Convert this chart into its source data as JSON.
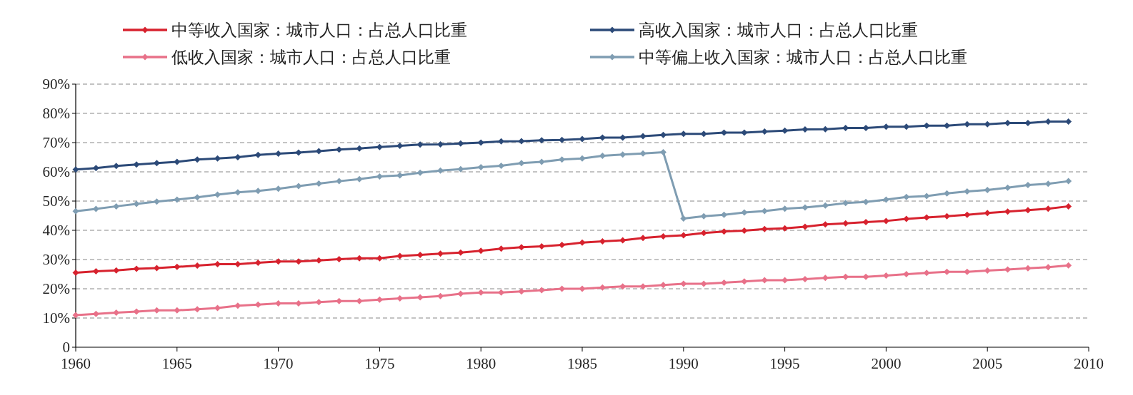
{
  "chart_data": {
    "type": "line",
    "x": [
      1960,
      1961,
      1962,
      1963,
      1964,
      1965,
      1966,
      1967,
      1968,
      1969,
      1970,
      1971,
      1972,
      1973,
      1974,
      1975,
      1976,
      1977,
      1978,
      1979,
      1980,
      1981,
      1982,
      1983,
      1984,
      1985,
      1986,
      1987,
      1988,
      1989,
      1990,
      1991,
      1992,
      1993,
      1994,
      1995,
      1996,
      1997,
      1998,
      1999,
      2000,
      2001,
      2002,
      2003,
      2004,
      2005,
      2006,
      2007,
      2008,
      2009
    ],
    "xlim": [
      1960,
      2010
    ],
    "xticks": [
      1960,
      1965,
      1970,
      1975,
      1980,
      1985,
      1990,
      1995,
      2000,
      2005,
      2010
    ],
    "ylim": [
      0,
      90
    ],
    "yticks": [
      {
        "value": 0,
        "label": "0"
      },
      {
        "value": 10,
        "label": "10%"
      },
      {
        "value": 20,
        "label": "20%"
      },
      {
        "value": 30,
        "label": "30%"
      },
      {
        "value": 40,
        "label": "40%"
      },
      {
        "value": 50,
        "label": "50%"
      },
      {
        "value": 60,
        "label": "60%"
      },
      {
        "value": 70,
        "label": "70%"
      },
      {
        "value": 80,
        "label": "80%"
      },
      {
        "value": 90,
        "label": "90%"
      }
    ],
    "grid": "y",
    "legend": "top",
    "marker": "diamond",
    "line_style": "solid",
    "series": [
      {
        "name": "中等收入国家：城市人口：占总人口比重",
        "color": "#d7222e",
        "values": [
          25.5,
          26.0,
          26.3,
          26.8,
          27.1,
          27.5,
          27.9,
          28.4,
          28.4,
          28.9,
          29.3,
          29.3,
          29.7,
          30.1,
          30.4,
          30.4,
          31.2,
          31.6,
          32.0,
          32.4,
          33.0,
          33.7,
          34.2,
          34.5,
          35.0,
          35.8,
          36.2,
          36.6,
          37.4,
          37.9,
          38.3,
          39.1,
          39.6,
          39.9,
          40.4,
          40.7,
          41.2,
          42.0,
          42.4,
          42.8,
          43.2,
          43.9,
          44.4,
          44.8,
          45.3,
          45.9,
          46.4,
          46.9,
          47.4,
          48.2
        ]
      },
      {
        "name": "高收入国家：城市人口：占总人口比重",
        "color": "#2c4a78",
        "values": [
          60.8,
          61.3,
          62.0,
          62.5,
          63.0,
          63.4,
          64.2,
          64.6,
          65.0,
          65.8,
          66.2,
          66.6,
          67.1,
          67.6,
          68.0,
          68.5,
          68.9,
          69.3,
          69.4,
          69.7,
          70.0,
          70.4,
          70.5,
          70.8,
          70.9,
          71.2,
          71.7,
          71.7,
          72.2,
          72.6,
          73.0,
          73.0,
          73.4,
          73.4,
          73.8,
          74.1,
          74.5,
          74.6,
          75.0,
          75.0,
          75.4,
          75.4,
          75.8,
          75.8,
          76.3,
          76.3,
          76.7,
          76.7,
          77.2,
          77.2
        ]
      },
      {
        "name": "低收入国家：城市人口：占总人口比重",
        "color": "#e87189",
        "values": [
          11.0,
          11.4,
          11.8,
          12.2,
          12.6,
          12.6,
          13.0,
          13.4,
          14.2,
          14.6,
          15.0,
          15.0,
          15.4,
          15.8,
          15.8,
          16.3,
          16.7,
          17.1,
          17.5,
          18.3,
          18.7,
          18.7,
          19.1,
          19.5,
          20.0,
          20.0,
          20.4,
          20.8,
          20.8,
          21.3,
          21.7,
          21.7,
          22.1,
          22.5,
          22.9,
          22.9,
          23.3,
          23.7,
          24.1,
          24.1,
          24.5,
          25.0,
          25.4,
          25.8,
          25.8,
          26.2,
          26.6,
          27.0,
          27.4,
          28.0
        ]
      },
      {
        "name": "中等偏上收入国家：城市人口：占总人口比重",
        "color": "#7f9db2",
        "values": [
          46.5,
          47.3,
          48.2,
          49.0,
          49.8,
          50.5,
          51.3,
          52.2,
          53.0,
          53.5,
          54.2,
          55.1,
          56.0,
          56.8,
          57.5,
          58.4,
          58.8,
          59.7,
          60.4,
          60.9,
          61.6,
          62.1,
          63.0,
          63.4,
          64.2,
          64.6,
          65.5,
          65.9,
          66.3,
          66.7,
          44.0,
          44.8,
          45.3,
          46.1,
          46.6,
          47.4,
          47.8,
          48.5,
          49.3,
          49.7,
          50.5,
          51.4,
          51.7,
          52.6,
          53.3,
          53.8,
          54.6,
          55.5,
          55.9,
          56.8
        ]
      }
    ]
  }
}
